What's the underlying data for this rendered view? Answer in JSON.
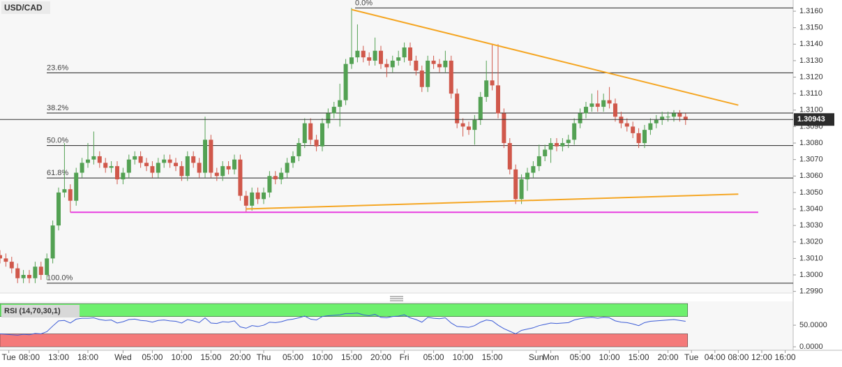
{
  "chart_data": {
    "type": "candlestick",
    "title": "USD/CAD",
    "up_color": "#53a153",
    "down_color": "#d0584b",
    "x": [
      -5,
      -4,
      -3,
      -2,
      -1,
      0,
      1,
      2,
      3,
      4,
      5,
      6,
      7,
      8,
      9,
      10,
      11,
      12,
      13,
      14,
      15,
      16,
      17,
      18,
      19,
      20,
      21,
      22,
      23,
      24,
      25,
      26,
      27,
      28,
      29,
      30,
      31,
      32,
      33,
      34,
      35,
      36,
      37,
      38,
      39,
      40,
      41,
      42,
      43,
      44,
      45,
      46,
      47,
      48,
      49,
      50,
      51,
      52,
      53,
      54,
      55,
      56,
      57,
      58,
      59,
      60,
      61,
      62,
      63,
      64,
      65,
      66,
      67,
      68,
      69,
      70,
      71,
      72,
      73,
      74,
      75,
      76,
      77,
      78,
      79,
      80,
      81,
      82,
      83,
      84,
      85,
      86,
      87,
      88,
      89,
      90,
      91,
      92,
      93,
      94,
      95,
      96,
      97,
      98,
      99,
      100,
      101,
      102,
      103,
      104,
      105,
      106,
      107,
      108,
      109,
      110,
      111,
      112
    ],
    "open": [
      1.3012,
      1.301,
      1.3008,
      1.3004,
      1.2998,
      1.3,
      1.2998,
      1.3005,
      1.3,
      1.301,
      1.303,
      1.305,
      1.3052,
      1.3045,
      1.3062,
      1.3068,
      1.307,
      1.3072,
      1.3068,
      1.3065,
      1.3066,
      1.3058,
      1.3062,
      1.307,
      1.3072,
      1.3068,
      1.3066,
      1.3062,
      1.3068,
      1.307,
      1.3068,
      1.3066,
      1.306,
      1.3072,
      1.3068,
      1.3062,
      1.3082,
      1.3062,
      1.306,
      1.3066,
      1.3064,
      1.307,
      1.3048,
      1.3042,
      1.305,
      1.3046,
      1.305,
      1.306,
      1.3058,
      1.3062,
      1.3068,
      1.3072,
      1.308,
      1.3092,
      1.3082,
      1.3078,
      1.3092,
      1.3098,
      1.3102,
      1.3106,
      1.3128,
      1.3132,
      1.3136,
      1.3132,
      1.313,
      1.3136,
      1.3128,
      1.3126,
      1.313,
      1.3132,
      1.3138,
      1.313,
      1.3124,
      1.3114,
      1.313,
      1.3128,
      1.3126,
      1.313,
      1.311,
      1.3092,
      1.309,
      1.3088,
      1.3094,
      1.3108,
      1.3118,
      1.3115,
      1.3098,
      1.308,
      1.3064,
      1.3046,
      1.3058,
      1.3062,
      1.3066,
      1.3072,
      1.3076,
      1.308,
      1.3078,
      1.308,
      1.3082,
      1.3092,
      1.3098,
      1.3102,
      1.3104,
      1.3102,
      1.3106,
      1.3104,
      1.3096,
      1.3092,
      1.309,
      1.3086,
      1.308,
      1.3088,
      1.3092,
      1.3094,
      1.3096,
      1.3096,
      1.3098,
      1.3096
    ],
    "high": [
      1.3015,
      1.3013,
      1.3011,
      1.3007,
      1.3003,
      1.3003,
      1.3008,
      1.3008,
      1.3013,
      1.3033,
      1.3053,
      1.308,
      1.3055,
      1.3065,
      1.3071,
      1.308,
      1.3087,
      1.3075,
      1.3071,
      1.3069,
      1.3069,
      1.3065,
      1.3073,
      1.3075,
      1.3075,
      1.3071,
      1.3069,
      1.3071,
      1.3073,
      1.3073,
      1.3071,
      1.3069,
      1.3075,
      1.3075,
      1.3071,
      1.3096,
      1.3085,
      1.3065,
      1.3069,
      1.3069,
      1.3073,
      1.3073,
      1.3051,
      1.3053,
      1.3053,
      1.3053,
      1.3063,
      1.3063,
      1.3065,
      1.3071,
      1.3075,
      1.3083,
      1.3095,
      1.3095,
      1.3085,
      1.3095,
      1.3101,
      1.3105,
      1.3116,
      1.3131,
      1.3162,
      1.3152,
      1.3139,
      1.3135,
      1.3144,
      1.3139,
      1.3131,
      1.3133,
      1.3136,
      1.3141,
      1.3141,
      1.3133,
      1.3127,
      1.3133,
      1.3133,
      1.3131,
      1.3136,
      1.3133,
      1.3113,
      1.3095,
      1.3093,
      1.3097,
      1.3111,
      1.313,
      1.314,
      1.314,
      1.3101,
      1.3083,
      1.3067,
      1.3061,
      1.3065,
      1.3069,
      1.3079,
      1.3079,
      1.3083,
      1.3083,
      1.3083,
      1.3085,
      1.3095,
      1.3101,
      1.3105,
      1.311,
      1.3112,
      1.311,
      1.3114,
      1.3107,
      1.3099,
      1.3095,
      1.3093,
      1.3089,
      1.3091,
      1.3095,
      1.3097,
      1.3099,
      1.3099,
      1.31,
      1.31,
      1.3098
    ],
    "low": [
      1.3007,
      1.3005,
      1.3001,
      1.2995,
      1.2995,
      1.2995,
      1.2995,
      1.2997,
      1.2997,
      1.3007,
      1.3027,
      1.3047,
      1.3038,
      1.3042,
      1.3059,
      1.3065,
      1.3067,
      1.3065,
      1.3062,
      1.3062,
      1.3055,
      1.3055,
      1.3059,
      1.3067,
      1.3065,
      1.3063,
      1.3059,
      1.3059,
      1.3065,
      1.3065,
      1.3063,
      1.3057,
      1.3057,
      1.3065,
      1.3059,
      1.3059,
      1.3059,
      1.3057,
      1.3057,
      1.3061,
      1.3061,
      1.3045,
      1.3038,
      1.3039,
      1.3043,
      1.3043,
      1.3047,
      1.3055,
      1.3055,
      1.3059,
      1.3065,
      1.3069,
      1.3077,
      1.3079,
      1.3075,
      1.3075,
      1.3089,
      1.3095,
      1.309,
      1.3103,
      1.3125,
      1.3129,
      1.3129,
      1.3127,
      1.3127,
      1.3125,
      1.312,
      1.3123,
      1.3127,
      1.3129,
      1.3127,
      1.3121,
      1.3111,
      1.3111,
      1.3125,
      1.3123,
      1.3123,
      1.3107,
      1.3089,
      1.3084,
      1.3085,
      1.3079,
      1.3091,
      1.3105,
      1.3112,
      1.3095,
      1.3077,
      1.3061,
      1.3043,
      1.3043,
      1.3051,
      1.3059,
      1.3063,
      1.3069,
      1.3068,
      1.3075,
      1.3075,
      1.3077,
      1.3079,
      1.3089,
      1.3095,
      1.3099,
      1.3099,
      1.3099,
      1.3101,
      1.3093,
      1.3089,
      1.3087,
      1.3083,
      1.3077,
      1.3077,
      1.3085,
      1.3089,
      1.3091,
      1.3093,
      1.3093,
      1.3093,
      1.3091
    ],
    "close": [
      1.301,
      1.3008,
      1.3004,
      1.2998,
      1.3,
      1.2998,
      1.3005,
      1.3,
      1.301,
      1.303,
      1.305,
      1.3052,
      1.3045,
      1.3062,
      1.3068,
      1.307,
      1.3072,
      1.3068,
      1.3065,
      1.3066,
      1.3058,
      1.3062,
      1.307,
      1.3072,
      1.3068,
      1.3066,
      1.3062,
      1.3068,
      1.307,
      1.3068,
      1.3066,
      1.306,
      1.3072,
      1.3068,
      1.3062,
      1.3082,
      1.3062,
      1.306,
      1.3066,
      1.3064,
      1.307,
      1.3048,
      1.3042,
      1.305,
      1.3046,
      1.305,
      1.306,
      1.3058,
      1.3062,
      1.3068,
      1.3072,
      1.308,
      1.3092,
      1.3082,
      1.3078,
      1.3092,
      1.3098,
      1.3102,
      1.3106,
      1.3128,
      1.3132,
      1.3136,
      1.3132,
      1.313,
      1.3136,
      1.3128,
      1.3126,
      1.313,
      1.3132,
      1.3138,
      1.313,
      1.3124,
      1.3114,
      1.313,
      1.3128,
      1.3126,
      1.313,
      1.311,
      1.3092,
      1.309,
      1.3088,
      1.3094,
      1.3108,
      1.3118,
      1.3115,
      1.3098,
      1.308,
      1.3064,
      1.3046,
      1.3058,
      1.3062,
      1.3066,
      1.3072,
      1.3076,
      1.308,
      1.3078,
      1.308,
      1.3082,
      1.3092,
      1.3098,
      1.3102,
      1.3104,
      1.3102,
      1.3106,
      1.3104,
      1.3096,
      1.3092,
      1.309,
      1.3086,
      1.308,
      1.3088,
      1.3092,
      1.3094,
      1.3096,
      1.3096,
      1.3098,
      1.3096,
      1.3094
    ],
    "last_price": 1.30943,
    "xlim": [
      -5,
      130.36
    ],
    "ylim": [
      1.2989,
      1.31668
    ],
    "yticks": [
      {
        "value": 1.299,
        "label": "1.2990"
      },
      {
        "value": 1.3,
        "label": "1.3000"
      },
      {
        "value": 1.301,
        "label": "1.3010"
      },
      {
        "value": 1.302,
        "label": "1.3020"
      },
      {
        "value": 1.303,
        "label": "1.3030"
      },
      {
        "value": 1.304,
        "label": "1.3040"
      },
      {
        "value": 1.305,
        "label": "1.3050"
      },
      {
        "value": 1.306,
        "label": "1.3060"
      },
      {
        "value": 1.307,
        "label": "1.3070"
      },
      {
        "value": 1.308,
        "label": "1.3080"
      },
      {
        "value": 1.309,
        "label": "1.3090"
      },
      {
        "value": 1.31,
        "label": "1.3100"
      },
      {
        "value": 1.311,
        "label": "1.3110"
      },
      {
        "value": 1.312,
        "label": "1.3120"
      },
      {
        "value": 1.313,
        "label": "1.3130"
      },
      {
        "value": 1.314,
        "label": "1.3140"
      },
      {
        "value": 1.315,
        "label": "1.3150"
      },
      {
        "value": 1.316,
        "label": "1.3160"
      }
    ],
    "xticks": [
      {
        "value": -3.5,
        "label": "Tue"
      },
      {
        "value": 0,
        "label": "08:00"
      },
      {
        "value": 5,
        "label": "13:00"
      },
      {
        "value": 10,
        "label": "18:00"
      },
      {
        "value": 16,
        "label": "Wed"
      },
      {
        "value": 21,
        "label": "05:00"
      },
      {
        "value": 26,
        "label": "10:00"
      },
      {
        "value": 31,
        "label": "15:00"
      },
      {
        "value": 36,
        "label": "20:00"
      },
      {
        "value": 40,
        "label": "Thu"
      },
      {
        "value": 45,
        "label": "05:00"
      },
      {
        "value": 50,
        "label": "10:00"
      },
      {
        "value": 55,
        "label": "15:00"
      },
      {
        "value": 60,
        "label": "20:00"
      },
      {
        "value": 64,
        "label": "Fri"
      },
      {
        "value": 69,
        "label": "05:00"
      },
      {
        "value": 74,
        "label": "10:00"
      },
      {
        "value": 79,
        "label": "15:00"
      },
      {
        "value": 86.5,
        "label": "Sun"
      },
      {
        "value": 89,
        "label": "Mon"
      },
      {
        "value": 94,
        "label": "05:00"
      },
      {
        "value": 99,
        "label": "10:00"
      },
      {
        "value": 104,
        "label": "15:00"
      },
      {
        "value": 109,
        "label": "20:00"
      },
      {
        "value": 113,
        "label": "Tue"
      },
      {
        "value": 117,
        "label": "04:00"
      },
      {
        "value": 121,
        "label": "08:00"
      },
      {
        "value": 125,
        "label": "12:00"
      },
      {
        "value": 129,
        "label": "16:00"
      }
    ],
    "fib_levels": [
      {
        "label": "0.0%",
        "value": 1.3162
      },
      {
        "label": "23.6%",
        "value": 1.31226
      },
      {
        "label": "38.2%",
        "value": 1.30982
      },
      {
        "label": "50.0%",
        "value": 1.30785
      },
      {
        "label": "61.8%",
        "value": 1.30588
      },
      {
        "label": "100.0%",
        "value": 1.2995
      }
    ],
    "lines": [
      {
        "color": "#f5a623",
        "x": [
          55,
          121
        ],
        "y": [
          1.3161,
          1.3103
        ]
      },
      {
        "color": "#f5a623",
        "x": [
          37,
          121
        ],
        "y": [
          1.304,
          1.3049
        ]
      },
      {
        "color": "#e83ee0",
        "x": [
          7,
          124.4
        ],
        "y": [
          1.3038,
          1.3038
        ]
      }
    ],
    "rsi": {
      "label": "RSI (14,70,30,1)",
      "color": "#3b5bd6",
      "overbought": 70,
      "oversold": 30,
      "ylim": [
        -8,
        105
      ],
      "yticks": [
        {
          "value": 50,
          "label": "50.0000"
        },
        {
          "value": 0,
          "label": "0.0000"
        }
      ],
      "values": [
        30,
        29,
        28,
        27,
        29,
        28,
        31,
        30,
        35,
        48,
        60,
        61,
        55,
        64,
        66,
        66,
        67,
        63,
        61,
        62,
        55,
        58,
        63,
        64,
        61,
        60,
        57,
        61,
        62,
        60,
        59,
        55,
        63,
        60,
        56,
        67,
        55,
        54,
        58,
        57,
        60,
        46,
        43,
        49,
        47,
        50,
        57,
        56,
        58,
        62,
        64,
        67,
        71,
        64,
        62,
        70,
        72,
        73,
        74,
        77,
        77,
        78,
        74,
        72,
        75,
        68,
        67,
        70,
        71,
        74,
        67,
        63,
        57,
        68,
        66,
        65,
        67,
        55,
        47,
        46,
        45,
        49,
        57,
        62,
        60,
        50,
        42,
        36,
        30,
        38,
        41,
        44,
        49,
        52,
        55,
        54,
        55,
        56,
        62,
        65,
        67,
        68,
        66,
        68,
        67,
        60,
        57,
        56,
        53,
        49,
        56,
        59,
        60,
        61,
        62,
        63,
        61,
        59
      ]
    }
  }
}
